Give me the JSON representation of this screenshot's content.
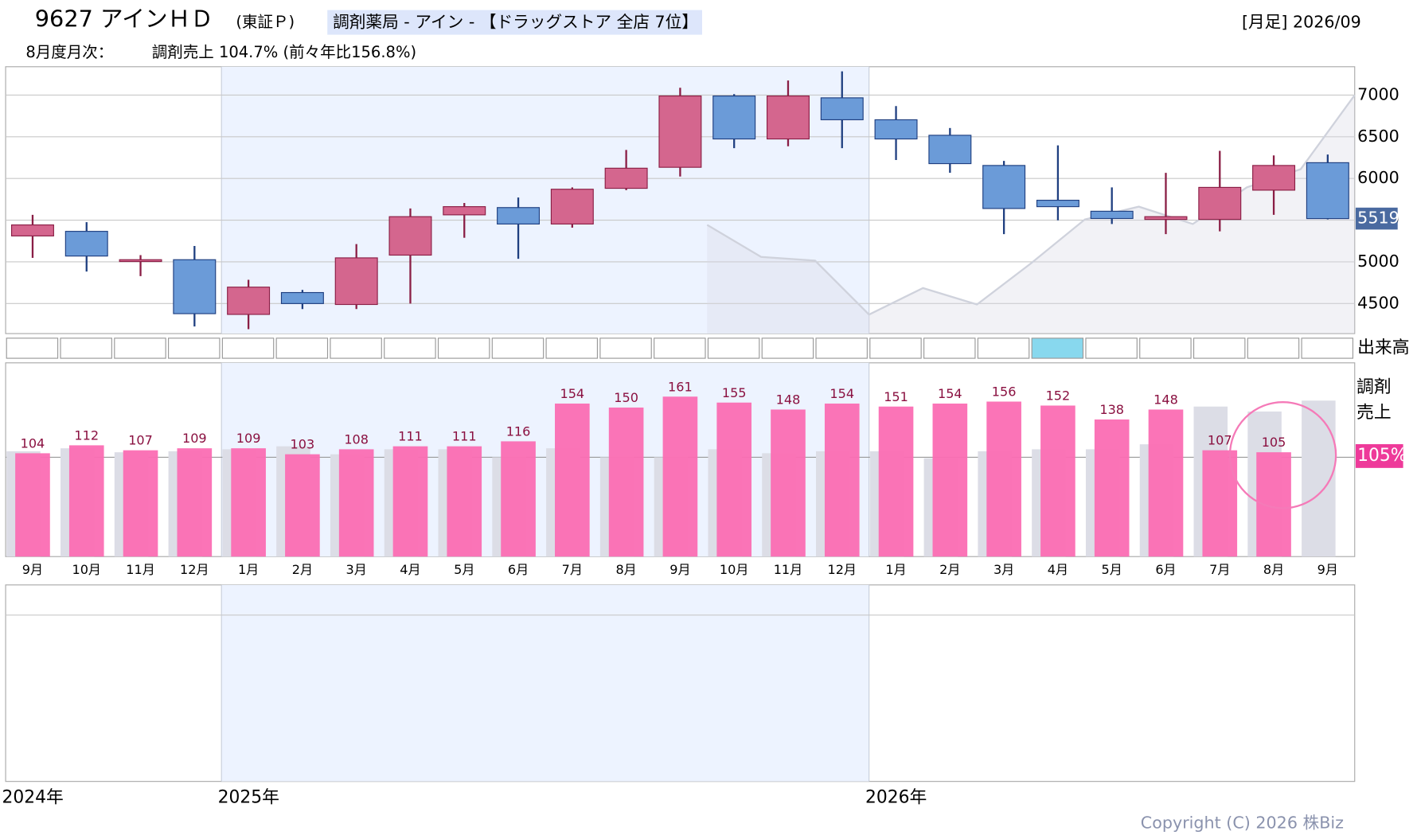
{
  "header": {
    "code_name": "9627 アインＨＤ",
    "market": "(東証Ｐ)",
    "sector": "調剤薬局 - アイン - 【ドラッグストア 全店 7位】",
    "period": "[月足] 2026/09",
    "monthly_label": "8月度月次：",
    "monthly_value": "調剤売上 104.7% (前々年比156.8%)"
  },
  "chart_data": [
    {
      "type": "candlestick",
      "categories": [
        "9月",
        "10月",
        "11月",
        "12月",
        "1月",
        "2月",
        "3月",
        "4月",
        "5月",
        "6月",
        "7月",
        "8月",
        "9月",
        "10月",
        "11月",
        "12月",
        "1月",
        "2月",
        "3月",
        "4月",
        "5月",
        "6月",
        "7月",
        "8月",
        "9月"
      ],
      "open": [
        5311,
        5366,
        5004,
        5026,
        4370,
        4632,
        4489,
        5081,
        5564,
        5651,
        5454,
        5882,
        6134,
        6989,
        6474,
        6967,
        6704,
        6518,
        6156,
        5739,
        5607,
        5509,
        5509,
        5860,
        6189
      ],
      "close": [
        5443,
        5070,
        5026,
        4379,
        4697,
        4500,
        5048,
        5542,
        5662,
        5454,
        5871,
        6123,
        6989,
        6474,
        6989,
        6704,
        6474,
        6178,
        5640,
        5662,
        5520,
        5542,
        5893,
        6156,
        5519
      ],
      "high": [
        5564,
        5476,
        5081,
        5191,
        4785,
        4664,
        5213,
        5640,
        5706,
        5772,
        5893,
        6342,
        7088,
        7011,
        7175,
        7285,
        6868,
        6605,
        6211,
        6397,
        5893,
        6068,
        6331,
        6276,
        6287
      ],
      "low": [
        5048,
        4884,
        4829,
        4226,
        4193,
        4434,
        4434,
        4500,
        5289,
        5037,
        5410,
        5860,
        6024,
        6364,
        6386,
        6364,
        6221,
        6068,
        5333,
        5498,
        5454,
        5333,
        5366,
        5564,
        5509
      ],
      "up_color": "#d4668e",
      "down_color": "#6b9bd8",
      "shadow_line": [
        5443,
        5059,
        5015,
        4368,
        4686,
        4489,
        4982,
        5509,
        5662,
        5454,
        5893,
        6112,
        7000
      ],
      "shadow_start": 13,
      "ylim": [
        4140,
        7340
      ],
      "yticks": [
        4500,
        5000,
        5500,
        6000,
        6500,
        7000
      ],
      "grid": true,
      "last_price_label": "5519",
      "volume_label": "出来高",
      "volume_highlight": 19
    },
    {
      "type": "bar",
      "title": "調剤\n売上",
      "categories": [
        "9月",
        "10月",
        "11月",
        "12月",
        "1月",
        "2月",
        "3月",
        "4月",
        "5月",
        "6月",
        "7月",
        "8月",
        "9月",
        "10月",
        "11月",
        "12月",
        "1月",
        "2月",
        "3月",
        "4月",
        "5月",
        "6月",
        "7月",
        "8月",
        "9月"
      ],
      "series": [
        {
          "color": "#dcdde6",
          "values": [
            106,
            109,
            105,
            106,
            108,
            111,
            103,
            108,
            108,
            100,
            109,
            100,
            100,
            108,
            104,
            106,
            106,
            99,
            106,
            108,
            108,
            113,
            151,
            146,
            157
          ]
        },
        {
          "color": "#fb6db3",
          "values": [
            104,
            112,
            107,
            109,
            109,
            103,
            108,
            111,
            111,
            116,
            154,
            150,
            161,
            155,
            148,
            154,
            151,
            154,
            156,
            152,
            138,
            148,
            107,
            105,
            null
          ]
        }
      ],
      "ylim": [
        0,
        195
      ],
      "ref_line": 100,
      "current_label": "105%",
      "highlight": 23,
      "year_labels": [
        "2024年",
        "2025年",
        "2026年"
      ],
      "year_starts": [
        0,
        4,
        16
      ]
    }
  ],
  "copyright": "Copyright (C) 2026 株Biz"
}
